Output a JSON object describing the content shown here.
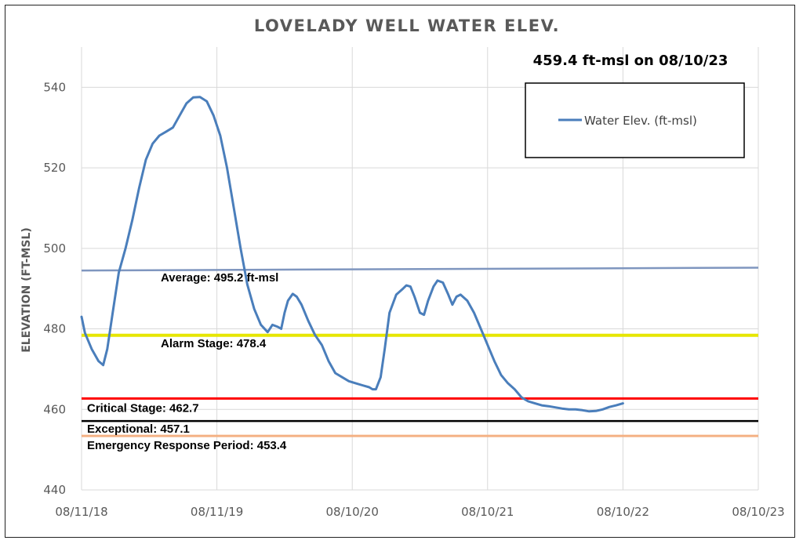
{
  "chart_data": {
    "type": "line",
    "title": "LOVELADY WELL WATER ELEV.",
    "ylabel": "ELEVATION (FT-MSL)",
    "xlabel": "",
    "ylim": [
      440,
      550
    ],
    "yticks": [
      440,
      460,
      480,
      500,
      520,
      540
    ],
    "xticks": [
      "08/11/18",
      "08/11/19",
      "08/10/20",
      "08/10/21",
      "08/10/22",
      "08/10/23"
    ],
    "grid": true,
    "legend_placement": "top-right",
    "annotation": "459.4 ft-msl on 08/10/23",
    "series": [
      {
        "name": "Water Elev. (ft-msl)",
        "color": "#4a7ebb",
        "points": [
          [
            0.0,
            483.0
          ],
          [
            0.05,
            479.0
          ],
          [
            0.15,
            475.0
          ],
          [
            0.25,
            472.0
          ],
          [
            0.32,
            471.0
          ],
          [
            0.38,
            475.0
          ],
          [
            0.46,
            484.0
          ],
          [
            0.55,
            494.0
          ],
          [
            0.65,
            500.0
          ],
          [
            0.75,
            507.0
          ],
          [
            0.85,
            515.0
          ],
          [
            0.95,
            522.0
          ],
          [
            1.05,
            526.0
          ],
          [
            1.15,
            528.0
          ],
          [
            1.25,
            529.0
          ],
          [
            1.35,
            530.0
          ],
          [
            1.45,
            533.0
          ],
          [
            1.55,
            536.0
          ],
          [
            1.65,
            537.5
          ],
          [
            1.75,
            537.6
          ],
          [
            1.85,
            536.5
          ],
          [
            1.95,
            533.0
          ],
          [
            2.05,
            528.0
          ],
          [
            2.15,
            520.0
          ],
          [
            2.25,
            510.0
          ],
          [
            2.35,
            500.0
          ],
          [
            2.45,
            491.0
          ],
          [
            2.55,
            485.0
          ],
          [
            2.65,
            481.0
          ],
          [
            2.75,
            479.2
          ],
          [
            2.82,
            481.0
          ],
          [
            2.9,
            480.5
          ],
          [
            2.95,
            480.0
          ],
          [
            3.0,
            484.0
          ],
          [
            3.05,
            487.0
          ],
          [
            3.12,
            488.7
          ],
          [
            3.18,
            488.0
          ],
          [
            3.25,
            486.0
          ],
          [
            3.35,
            482.0
          ],
          [
            3.45,
            478.5
          ],
          [
            3.55,
            476.0
          ],
          [
            3.65,
            472.0
          ],
          [
            3.75,
            469.0
          ],
          [
            3.85,
            468.0
          ],
          [
            3.95,
            467.0
          ],
          [
            4.05,
            466.5
          ],
          [
            4.15,
            466.0
          ],
          [
            4.25,
            465.5
          ],
          [
            4.3,
            465.0
          ],
          [
            4.35,
            465.0
          ],
          [
            4.42,
            468.0
          ],
          [
            4.48,
            475.0
          ],
          [
            4.55,
            484.0
          ],
          [
            4.65,
            488.5
          ],
          [
            4.75,
            490.0
          ],
          [
            4.8,
            490.8
          ],
          [
            4.86,
            490.5
          ],
          [
            4.92,
            488.0
          ],
          [
            5.0,
            484.0
          ],
          [
            5.06,
            483.5
          ],
          [
            5.12,
            487.0
          ],
          [
            5.2,
            490.5
          ],
          [
            5.26,
            492.0
          ],
          [
            5.34,
            491.5
          ],
          [
            5.42,
            488.5
          ],
          [
            5.48,
            486.0
          ],
          [
            5.54,
            488.0
          ],
          [
            5.6,
            488.5
          ],
          [
            5.7,
            487.0
          ],
          [
            5.8,
            484.0
          ],
          [
            5.9,
            480.0
          ],
          [
            6.0,
            476.0
          ],
          [
            6.1,
            472.0
          ],
          [
            6.2,
            468.5
          ],
          [
            6.3,
            466.5
          ],
          [
            6.4,
            465.0
          ],
          [
            6.5,
            463.0
          ],
          [
            6.6,
            462.0
          ],
          [
            6.7,
            461.5
          ],
          [
            6.8,
            461.0
          ],
          [
            6.9,
            460.8
          ],
          [
            7.0,
            460.5
          ],
          [
            7.1,
            460.2
          ],
          [
            7.2,
            460.0
          ],
          [
            7.3,
            460.0
          ],
          [
            7.4,
            459.8
          ],
          [
            7.5,
            459.5
          ],
          [
            7.6,
            459.6
          ],
          [
            7.7,
            460.0
          ],
          [
            7.8,
            460.6
          ],
          [
            7.9,
            461.0
          ],
          [
            8.0,
            461.5
          ]
        ]
      }
    ],
    "reference_lines": [
      {
        "label": "Average: 495.2 ft-msl",
        "start": 494.5,
        "end": 495.2,
        "color": "#7f96bf",
        "width": 2.5
      },
      {
        "label": "Alarm Stage: 478.4",
        "value": 478.4,
        "color": "#e6e600",
        "width": 4
      },
      {
        "label": "Critical Stage: 462.7",
        "value": 462.7,
        "color": "#ff0000",
        "width": 3
      },
      {
        "label": "Exceptional: 457.1",
        "value": 457.1,
        "color": "#000000",
        "width": 2.5
      },
      {
        "label": "Emergency Response Period: 453.4",
        "value": 453.4,
        "color": "#f4b183",
        "width": 3
      }
    ]
  }
}
